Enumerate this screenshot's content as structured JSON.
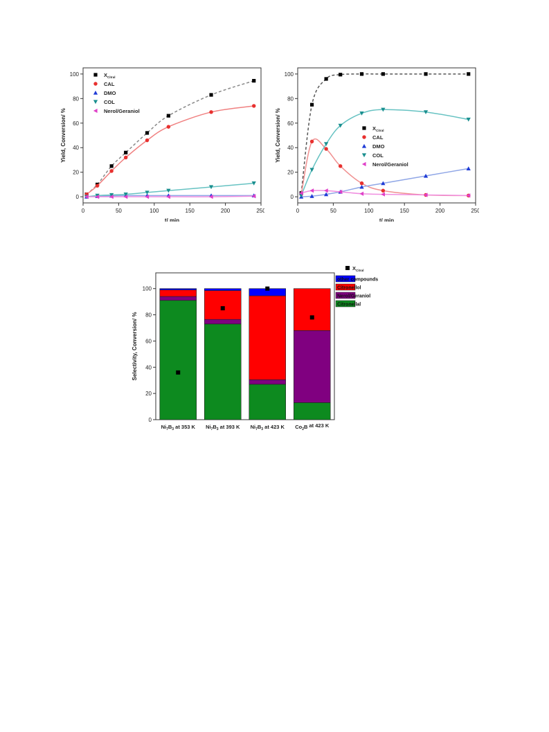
{
  "chart_data": [
    {
      "id": "left",
      "type": "scatter",
      "xlabel": "t/ min",
      "ylabel": "Yield, Conversion/ %",
      "xlim": [
        0,
        250
      ],
      "ylim": [
        -5,
        105
      ],
      "xticks": [
        0,
        50,
        100,
        150,
        200,
        250
      ],
      "yticks": [
        0,
        20,
        40,
        60,
        80,
        100
      ],
      "legend_position": "top-left",
      "series": [
        {
          "name": "X",
          "name_sub": "Citral",
          "marker": "square",
          "color": "#000000",
          "fit_color": "#888888",
          "fit_dash": true,
          "x": [
            5,
            20,
            40,
            60,
            90,
            120,
            180,
            240
          ],
          "y": [
            2,
            10,
            25,
            36,
            52,
            66,
            83,
            94.5
          ]
        },
        {
          "name": "CAL",
          "marker": "circle",
          "color": "#e8312f",
          "fit_color": "#f08080",
          "fit_dash": false,
          "x": [
            5,
            20,
            40,
            60,
            90,
            120,
            180,
            240
          ],
          "y": [
            2,
            9,
            21,
            32,
            46,
            57,
            69,
            74
          ]
        },
        {
          "name": "DMO",
          "marker": "triangle-up",
          "color": "#1f3bd6",
          "fit_color": "#8fa6e6",
          "fit_dash": false,
          "x": [
            5,
            20,
            40,
            60,
            90,
            120,
            180,
            240
          ],
          "y": [
            0,
            0.5,
            0.8,
            1,
            1,
            1,
            1,
            1
          ]
        },
        {
          "name": "COL",
          "marker": "triangle-down",
          "color": "#1a8f8f",
          "fit_color": "#66c2c2",
          "fit_dash": false,
          "x": [
            5,
            20,
            40,
            60,
            90,
            120,
            180,
            240
          ],
          "y": [
            0,
            1,
            1.5,
            2,
            3.5,
            5,
            8,
            11
          ]
        },
        {
          "name": "Nerol/Geraniol",
          "marker": "triangle-left",
          "color": "#e040c8",
          "fit_color": "#f08ee0",
          "fit_dash": false,
          "x": [
            5,
            20,
            40,
            60,
            90,
            120,
            180,
            240
          ],
          "y": [
            0,
            0,
            0,
            0,
            0,
            0,
            0,
            0.5
          ]
        }
      ]
    },
    {
      "id": "right",
      "type": "scatter",
      "xlabel": "t/ min",
      "ylabel": "Yield, Conversion/ %",
      "xlim": [
        0,
        250
      ],
      "ylim": [
        -5,
        105
      ],
      "xticks": [
        0,
        50,
        100,
        150,
        200,
        250
      ],
      "yticks": [
        0,
        20,
        40,
        60,
        80,
        100
      ],
      "legend_position": "center",
      "series": [
        {
          "name": "X",
          "name_sub": "Citral",
          "marker": "square",
          "color": "#000000",
          "fit_color": "#555555",
          "fit_dash": true,
          "x": [
            5,
            20,
            40,
            60,
            90,
            120,
            180,
            240
          ],
          "y": [
            3,
            75,
            96,
            99.5,
            100,
            100,
            100,
            100
          ]
        },
        {
          "name": "CAL",
          "marker": "circle",
          "color": "#e8312f",
          "fit_color": "#f09090",
          "fit_dash": false,
          "x": [
            5,
            20,
            40,
            60,
            90,
            120,
            180,
            240
          ],
          "y": [
            2,
            45,
            39,
            25,
            11,
            5,
            1.5,
            1
          ]
        },
        {
          "name": "DMO",
          "marker": "triangle-up",
          "color": "#1f3bd6",
          "fit_color": "#8fa6e6",
          "fit_dash": false,
          "x": [
            5,
            20,
            40,
            60,
            90,
            120,
            180,
            240
          ],
          "y": [
            0,
            0.5,
            2,
            4,
            8,
            11,
            17,
            23
          ]
        },
        {
          "name": "COL",
          "marker": "triangle-down",
          "color": "#1a8f8f",
          "fit_color": "#66c2c2",
          "fit_dash": false,
          "x": [
            5,
            20,
            40,
            60,
            90,
            120,
            180,
            240
          ],
          "y": [
            1,
            22,
            43,
            58,
            68,
            71,
            69,
            63
          ]
        },
        {
          "name": "Nerol/Geraniol",
          "marker": "triangle-left",
          "color": "#e040c8",
          "fit_color": "#f08ee0",
          "fit_dash": false,
          "x": [
            5,
            20,
            40,
            60,
            90,
            120,
            180,
            240
          ],
          "y": [
            3,
            5,
            5,
            4,
            2.5,
            2,
            1.5,
            1
          ]
        }
      ]
    },
    {
      "id": "bar",
      "type": "bar",
      "stacked": true,
      "ylabel": "Selectivity, Conversion/ %",
      "ylim": [
        0,
        112
      ],
      "yticks": [
        0,
        20,
        40,
        60,
        80,
        100
      ],
      "legend_position": "top-right",
      "categories": [
        {
          "main": "Ni",
          "sub1": "7",
          "mid": "B",
          "sub2": "3",
          "rest": " at 353 K"
        },
        {
          "main": "Ni",
          "sub1": "7",
          "mid": "B",
          "sub2": "3",
          "rest": " at 393 K"
        },
        {
          "main": "Ni",
          "sub1": "7",
          "mid": "B",
          "sub2": "3",
          "rest": " at 423 K"
        },
        {
          "main": "Co",
          "sub1": "2",
          "mid": "B",
          "sub2": "",
          "rest": " at 423 K"
        }
      ],
      "series": [
        {
          "name": "Citronellal",
          "color": "#0d8a1f",
          "values": [
            91,
            73,
            27,
            13
          ]
        },
        {
          "name": "Nerol/Geraniol",
          "color": "#800080",
          "values": [
            3,
            3.5,
            3.5,
            55
          ]
        },
        {
          "name": "Citronellol",
          "color": "#ff0000",
          "values": [
            5,
            22,
            64,
            32
          ]
        },
        {
          "name": "other compounds",
          "color": "#0000ff",
          "values": [
            1,
            1.5,
            5.5,
            0
          ]
        }
      ],
      "conversion": {
        "name": "X",
        "name_sub": "Citral",
        "color": "#000000",
        "values": [
          36,
          85,
          100,
          78
        ]
      }
    }
  ]
}
